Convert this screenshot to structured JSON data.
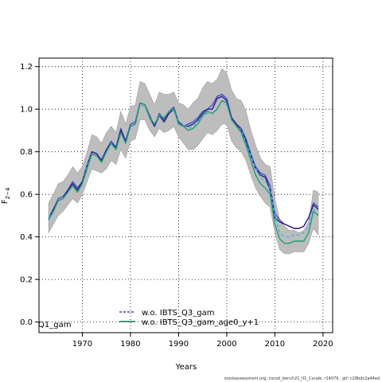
{
  "chart_data": {
    "type": "line",
    "xlabel": "Years",
    "ylabel": "F",
    "ylabel_subscript": "2−4",
    "xlim": [
      1961,
      2022
    ],
    "ylim": [
      -0.05,
      1.24
    ],
    "x_ticks": [
      1970,
      1980,
      1990,
      2000,
      2010,
      2020
    ],
    "x_tick_labels": [
      "1970",
      "1980",
      "1990",
      "2000",
      "2010",
      "2020"
    ],
    "y_ticks": [
      0.0,
      0.2,
      0.4,
      0.6,
      0.8,
      1.0,
      1.2
    ],
    "y_tick_labels": [
      "0.0",
      "0.2",
      "0.4",
      "0.6",
      "0.8",
      "1.0",
      "1.2"
    ],
    "grid": true,
    "legend_placement": "bottom-center",
    "partial_legend_text": "Q1_gam",
    "footer": "stockassessment.org, nscod_bench21_01_Cscale, r14079 , git: c28bdc2a44ad",
    "x": [
      1963,
      1964,
      1965,
      1966,
      1967,
      1968,
      1969,
      1970,
      1971,
      1972,
      1973,
      1974,
      1975,
      1976,
      1977,
      1978,
      1979,
      1980,
      1981,
      1982,
      1983,
      1984,
      1985,
      1986,
      1987,
      1988,
      1989,
      1990,
      1991,
      1992,
      1993,
      1994,
      1995,
      1996,
      1997,
      1998,
      1999,
      2000,
      2001,
      2002,
      2003,
      2004,
      2005,
      2006,
      2007,
      2008,
      2009,
      2010,
      2011,
      2012,
      2013,
      2014,
      2015,
      2016,
      2017,
      2018,
      2019
    ],
    "band": {
      "upper": [
        0.56,
        0.6,
        0.65,
        0.66,
        0.69,
        0.73,
        0.7,
        0.73,
        0.8,
        0.88,
        0.87,
        0.84,
        0.89,
        0.92,
        0.89,
        0.99,
        0.93,
        1.01,
        1.02,
        1.13,
        1.12,
        1.07,
        1.02,
        1.08,
        1.07,
        1.07,
        1.08,
        1.03,
        1.02,
        1.0,
        1.03,
        1.05,
        1.1,
        1.13,
        1.12,
        1.14,
        1.19,
        1.17,
        1.09,
        1.05,
        1.04,
        0.99,
        0.9,
        0.83,
        0.77,
        0.74,
        0.73,
        0.58,
        0.48,
        0.45,
        0.43,
        0.43,
        0.42,
        0.43,
        0.47,
        0.62,
        0.61
      ],
      "lower": [
        0.42,
        0.46,
        0.5,
        0.52,
        0.55,
        0.58,
        0.56,
        0.6,
        0.66,
        0.72,
        0.71,
        0.7,
        0.72,
        0.76,
        0.74,
        0.81,
        0.77,
        0.85,
        0.86,
        0.95,
        0.95,
        0.9,
        0.87,
        0.91,
        0.89,
        0.9,
        0.92,
        0.87,
        0.84,
        0.81,
        0.81,
        0.83,
        0.86,
        0.89,
        0.88,
        0.9,
        0.93,
        0.93,
        0.85,
        0.82,
        0.8,
        0.76,
        0.69,
        0.63,
        0.59,
        0.56,
        0.54,
        0.42,
        0.34,
        0.32,
        0.32,
        0.33,
        0.33,
        0.33,
        0.37,
        0.44,
        0.41
      ]
    },
    "series": [
      {
        "color": "#3b4cc0",
        "width": 1.3,
        "dash": "",
        "values": [
          0.49,
          0.53,
          0.58,
          0.59,
          0.62,
          0.66,
          0.63,
          0.66,
          0.74,
          0.8,
          0.79,
          0.76,
          0.81,
          0.85,
          0.82,
          0.91,
          0.85,
          0.93,
          0.94,
          1.03,
          1.02,
          0.97,
          0.92,
          0.98,
          0.95,
          0.99,
          1.01,
          0.94,
          0.92,
          0.93,
          0.94,
          0.96,
          0.99,
          1.0,
          1.02,
          1.06,
          1.07,
          1.05,
          0.96,
          0.93,
          0.91,
          0.86,
          0.79,
          0.73,
          0.7,
          0.69,
          0.64,
          0.51,
          0.48,
          0.46,
          0.45,
          0.44,
          0.44,
          0.45,
          0.49,
          0.56,
          0.54
        ]
      },
      {
        "color": "#2e1a8a",
        "width": 1.4,
        "dash": "",
        "values": [
          0.48,
          0.53,
          0.57,
          0.58,
          0.62,
          0.65,
          0.62,
          0.66,
          0.73,
          0.8,
          0.79,
          0.76,
          0.81,
          0.84,
          0.82,
          0.9,
          0.85,
          0.92,
          0.93,
          1.03,
          1.02,
          0.96,
          0.92,
          0.97,
          0.94,
          0.98,
          1.0,
          0.94,
          0.92,
          0.92,
          0.93,
          0.95,
          0.98,
          1.0,
          1.0,
          1.05,
          1.06,
          1.04,
          0.96,
          0.93,
          0.9,
          0.85,
          0.78,
          0.72,
          0.69,
          0.68,
          0.62,
          0.49,
          0.47,
          0.46,
          0.45,
          0.44,
          0.44,
          0.45,
          0.49,
          0.55,
          0.53
        ]
      },
      {
        "color": "#49b3d9",
        "width": 1.4,
        "dash": "4,3",
        "values": [
          0.49,
          0.52,
          0.57,
          0.58,
          0.61,
          0.64,
          0.61,
          0.65,
          0.73,
          0.79,
          0.78,
          0.75,
          0.8,
          0.84,
          0.81,
          0.89,
          0.84,
          0.92,
          0.93,
          1.02,
          1.01,
          0.96,
          0.93,
          0.97,
          0.96,
          0.99,
          1.0,
          0.94,
          0.93,
          0.91,
          0.92,
          0.94,
          0.97,
          0.98,
          0.98,
          1.0,
          1.04,
          1.02,
          0.95,
          0.92,
          0.9,
          0.84,
          0.78,
          0.72,
          0.68,
          0.66,
          0.63,
          0.5,
          0.42,
          0.4,
          0.4,
          0.41,
          0.41,
          0.42,
          0.45,
          0.53,
          0.51
        ]
      },
      {
        "color": "#1f9e7a",
        "width": 1.4,
        "dash": "",
        "values": [
          0.48,
          0.52,
          0.57,
          0.58,
          0.61,
          0.64,
          0.61,
          0.65,
          0.72,
          0.79,
          0.78,
          0.75,
          0.8,
          0.84,
          0.81,
          0.89,
          0.84,
          0.92,
          0.93,
          1.03,
          1.02,
          0.96,
          0.93,
          0.97,
          0.96,
          0.99,
          1.0,
          0.93,
          0.92,
          0.9,
          0.91,
          0.93,
          0.97,
          0.99,
          0.98,
          1.0,
          1.04,
          1.03,
          0.95,
          0.92,
          0.89,
          0.83,
          0.76,
          0.69,
          0.65,
          0.63,
          0.6,
          0.46,
          0.39,
          0.37,
          0.37,
          0.38,
          0.38,
          0.38,
          0.42,
          0.52,
          0.5
        ]
      }
    ],
    "legend": [
      {
        "label": "w.o. IBTS_Q3_gam",
        "color": "#2f4ea8",
        "dash": "3,2"
      },
      {
        "label": "w.o. IBTS_Q3_gam_age0_y+1",
        "color": "#1f7a5a",
        "dash": ""
      }
    ]
  }
}
